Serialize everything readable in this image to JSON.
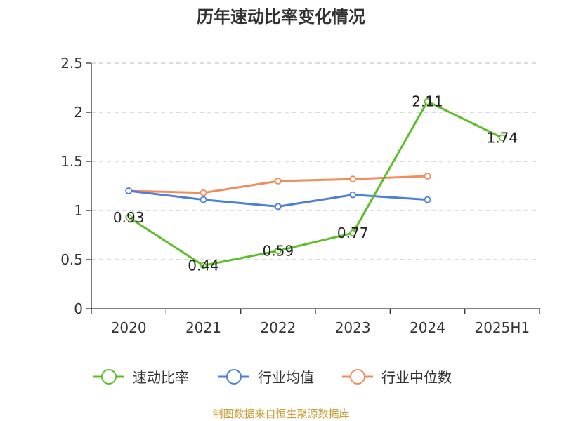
{
  "chart_data": {
    "type": "line",
    "title": "历年速动比率变化情况",
    "xlabel": "",
    "ylabel": "",
    "categories": [
      "2020",
      "2021",
      "2022",
      "2023",
      "2024",
      "2025H1"
    ],
    "y_ticks": [
      "0",
      "0.5",
      "1",
      "1.5",
      "2",
      "2.5"
    ],
    "ylim": [
      0,
      2.5
    ],
    "grid": true,
    "legend_position": "bottom",
    "series": [
      {
        "name": "速动比率",
        "color": "#5cbf2a",
        "values": [
          0.93,
          0.44,
          0.59,
          0.77,
          2.11,
          1.74
        ],
        "labels": [
          "0.93",
          "0.44",
          "0.59",
          "0.77",
          "2.11",
          "1.74"
        ]
      },
      {
        "name": "行业均值",
        "color": "#4e7fd6",
        "values": [
          1.2,
          1.11,
          1.04,
          1.16,
          1.11,
          null
        ]
      },
      {
        "name": "行业中位数",
        "color": "#f28c5a",
        "values": [
          1.2,
          1.18,
          1.3,
          1.32,
          1.35,
          null
        ]
      }
    ]
  },
  "source": "制图数据来自恒生聚源数据库"
}
